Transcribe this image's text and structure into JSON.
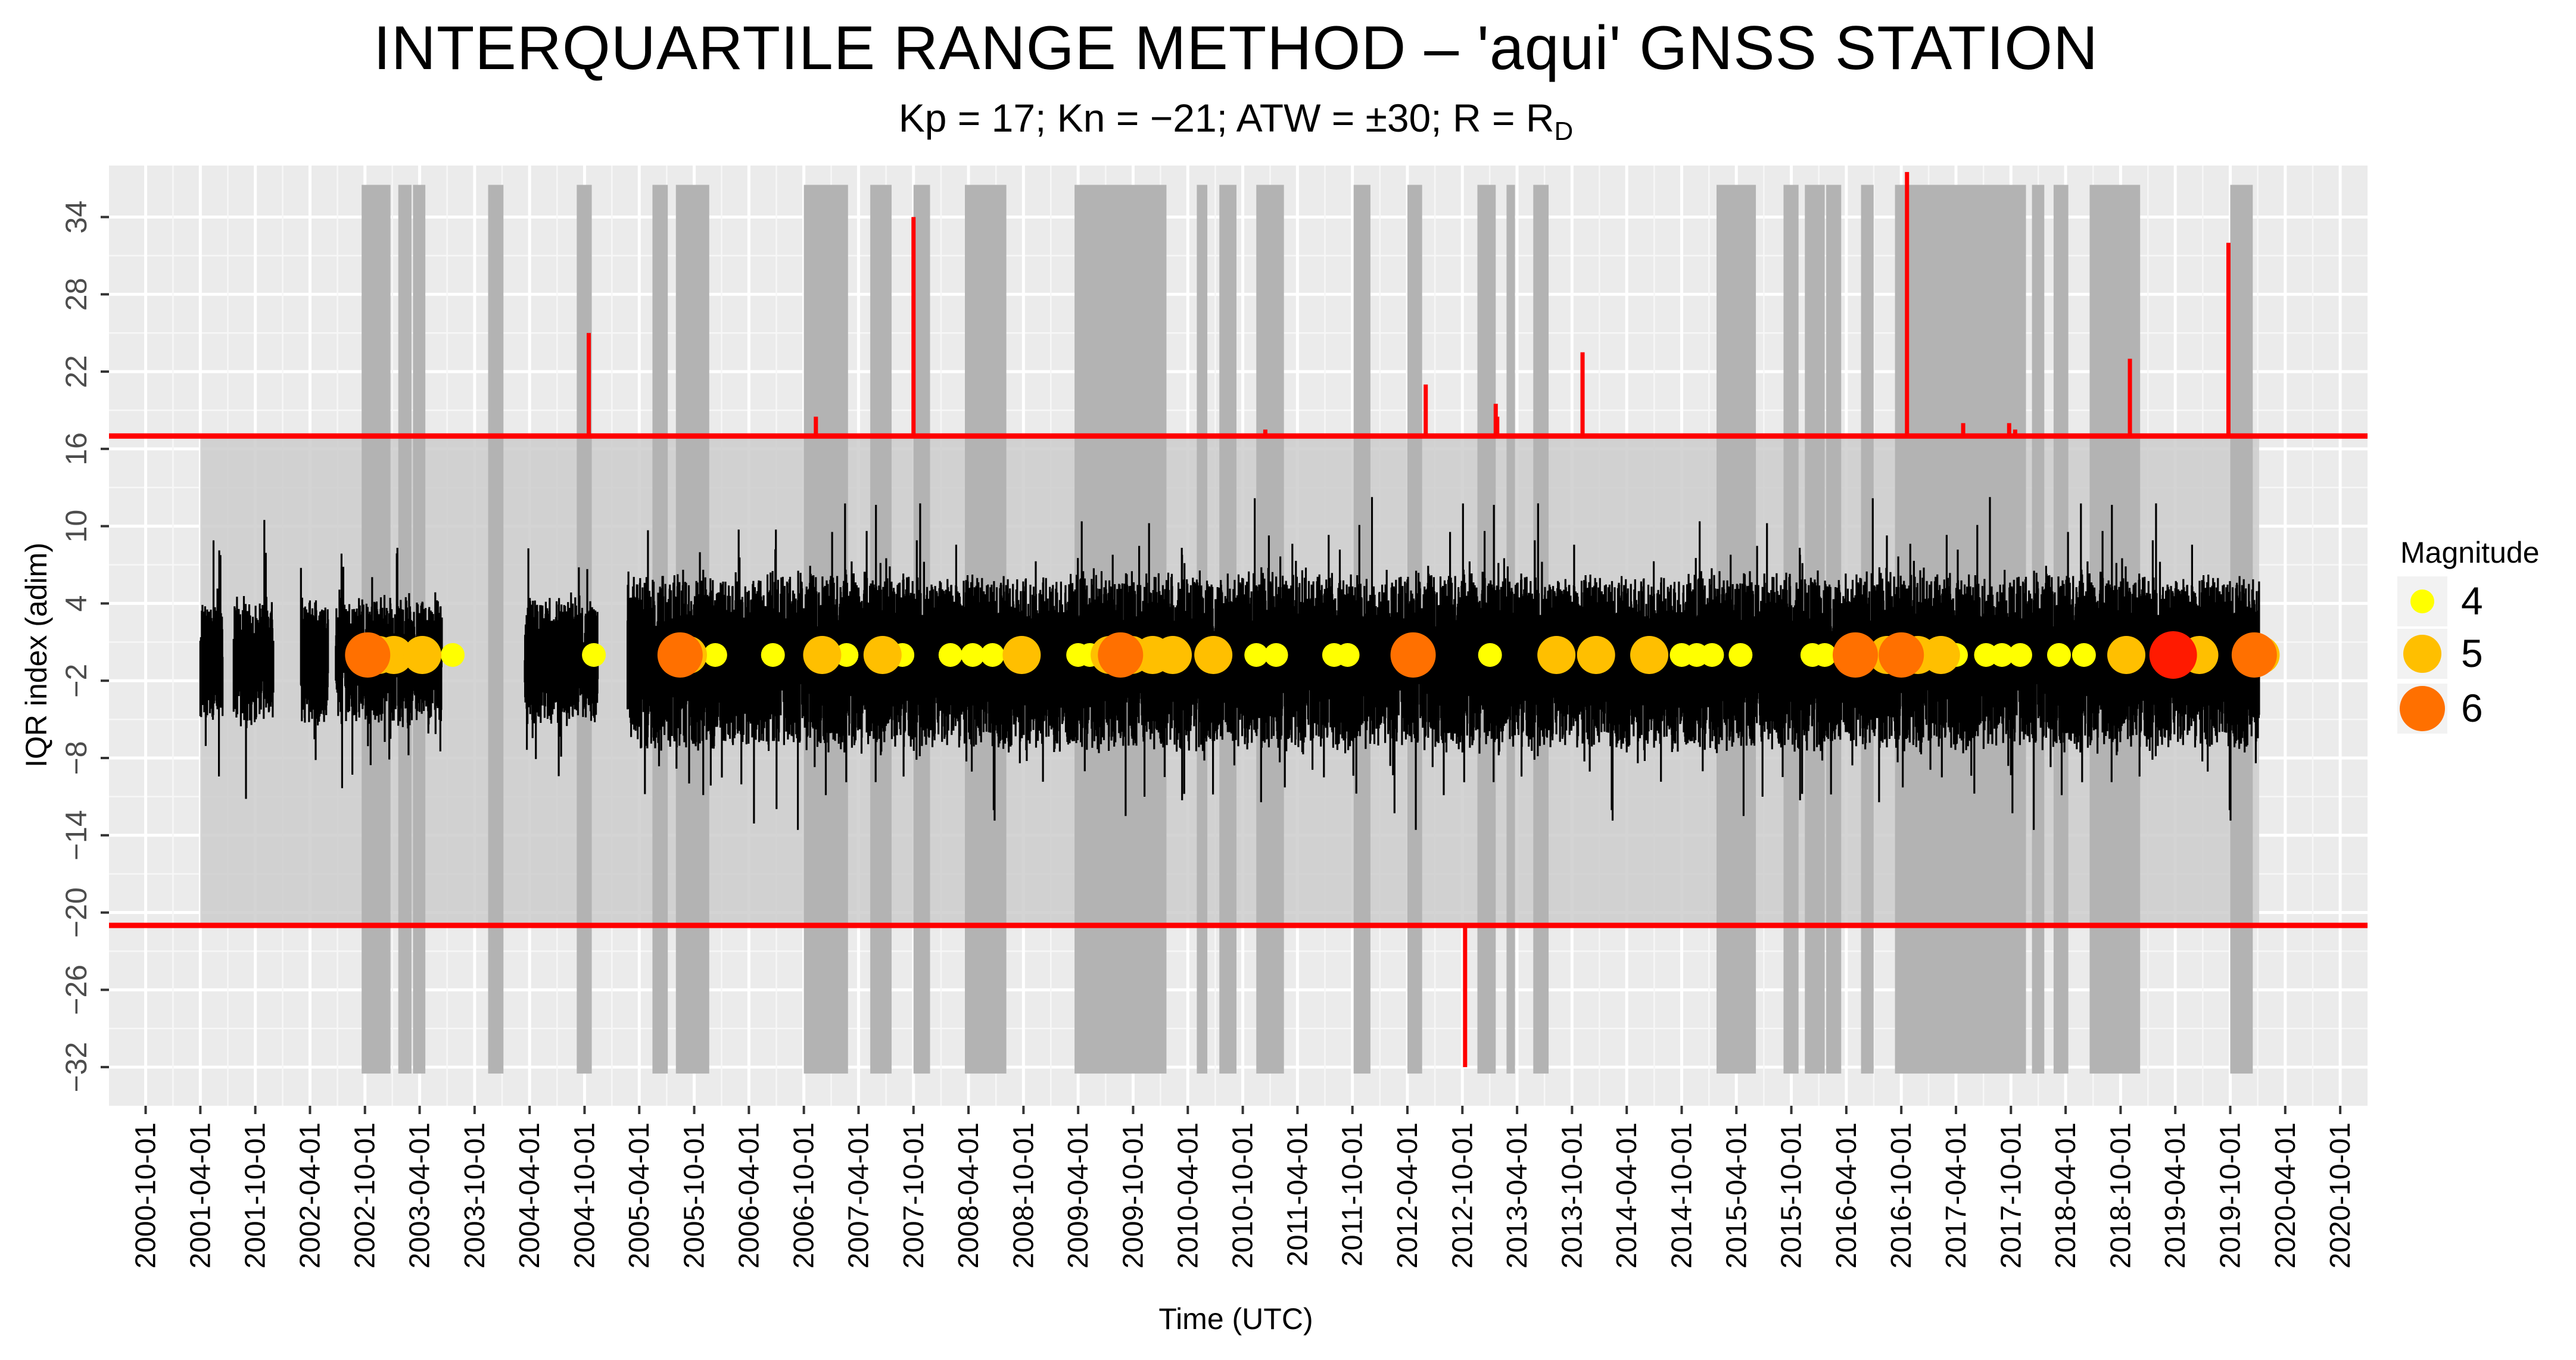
{
  "chart_data": {
    "type": "line",
    "title": "INTERQUARTILE RANGE METHOD – 'aqui' GNSS STATION",
    "subtitle": {
      "prefix": "Kp = 17; Kn = −21; ATW = ±30; R = R",
      "subscript": "D"
    },
    "xlabel": "Time (UTC)",
    "ylabel": "IQR index (adim)",
    "x_tick_labels": [
      "2000-10-01",
      "2001-04-01",
      "2001-10-01",
      "2002-04-01",
      "2002-10-01",
      "2003-04-01",
      "2003-10-01",
      "2004-04-01",
      "2004-10-01",
      "2005-04-01",
      "2005-10-01",
      "2006-04-01",
      "2006-10-01",
      "2007-04-01",
      "2007-10-01",
      "2008-04-01",
      "2008-10-01",
      "2009-04-01",
      "2009-10-01",
      "2010-04-01",
      "2010-10-01",
      "2011-04-01",
      "2011-10-01",
      "2012-04-01",
      "2012-10-01",
      "2013-04-01",
      "2013-10-01",
      "2014-04-01",
      "2014-10-01",
      "2015-04-01",
      "2015-10-01",
      "2016-04-01",
      "2016-10-01",
      "2017-04-01",
      "2017-10-01",
      "2018-04-01",
      "2018-10-01",
      "2019-04-01",
      "2019-10-01",
      "2020-04-01",
      "2020-10-01"
    ],
    "y_ticks": [
      34,
      28,
      22,
      16,
      10,
      4,
      -2,
      -8,
      -14,
      -20,
      -26,
      -32
    ],
    "y_tick_labels": [
      "34",
      "28",
      "22",
      "16",
      "10",
      "4",
      "−2",
      "−8",
      "−14",
      "−20",
      "−26",
      "−32"
    ],
    "xlim": [
      "2000-06-01",
      "2020-12-31"
    ],
    "ylim": [
      -35,
      38
    ],
    "grid": true,
    "thresholds": {
      "upper": 17,
      "lower": -21,
      "color": "#ff0000"
    },
    "shaded_periods": [
      [
        "2002-09-20",
        "2002-12-25"
      ],
      [
        "2003-01-20",
        "2003-03-05"
      ],
      [
        "2003-03-10",
        "2003-04-20"
      ],
      [
        "2003-11-15",
        "2004-01-05"
      ],
      [
        "2004-09-05",
        "2004-10-25"
      ],
      [
        "2005-05-15",
        "2005-07-05"
      ],
      [
        "2005-08-01",
        "2005-11-20"
      ],
      [
        "2006-10-01",
        "2007-02-25"
      ],
      [
        "2007-05-10",
        "2007-07-20"
      ],
      [
        "2007-10-01",
        "2007-11-25"
      ],
      [
        "2008-03-20",
        "2008-08-05"
      ],
      [
        "2009-03-20",
        "2010-01-20"
      ],
      [
        "2010-05-01",
        "2010-06-05"
      ],
      [
        "2010-07-15",
        "2010-09-10"
      ],
      [
        "2010-11-15",
        "2011-02-15"
      ],
      [
        "2011-10-05",
        "2011-11-30"
      ],
      [
        "2012-04-01",
        "2012-05-20"
      ],
      [
        "2012-11-20",
        "2013-01-20"
      ],
      [
        "2013-02-25",
        "2013-03-25"
      ],
      [
        "2013-05-25",
        "2013-07-15"
      ],
      [
        "2015-01-25",
        "2015-06-05"
      ],
      [
        "2015-09-05",
        "2015-10-25"
      ],
      [
        "2015-11-15",
        "2016-01-20"
      ],
      [
        "2016-01-25",
        "2016-03-15"
      ],
      [
        "2016-05-20",
        "2016-07-01"
      ],
      [
        "2016-09-10",
        "2017-11-20"
      ],
      [
        "2017-12-10",
        "2018-01-20"
      ],
      [
        "2018-02-20",
        "2018-04-10"
      ],
      [
        "2018-06-20",
        "2018-12-05"
      ],
      [
        "2019-10-01",
        "2019-12-15"
      ]
    ],
    "shaded_color": "#b3b3b3",
    "background_band": [
      "2001-04-01",
      "2020-01-05"
    ],
    "spikes": [
      {
        "date": "2004-10-15",
        "value": 25
      },
      {
        "date": "2006-11-10",
        "value": 18.5
      },
      {
        "date": "2007-10-01",
        "value": 34
      },
      {
        "date": "2010-12-15",
        "value": 17.5
      },
      {
        "date": "2012-06-01",
        "value": 21
      },
      {
        "date": "2012-10-10",
        "value": -32
      },
      {
        "date": "2013-01-20",
        "value": 19.5
      },
      {
        "date": "2013-01-25",
        "value": 18.5
      },
      {
        "date": "2013-11-05",
        "value": 23.5
      },
      {
        "date": "2016-10-20",
        "value": 37.5
      },
      {
        "date": "2017-04-25",
        "value": 18
      },
      {
        "date": "2017-09-25",
        "value": 18
      },
      {
        "date": "2017-10-15",
        "value": 17.5
      },
      {
        "date": "2018-11-01",
        "value": 23
      },
      {
        "date": "2019-09-25",
        "value": 32
      }
    ],
    "data_gaps": [
      [
        "2001-06-15",
        "2001-07-20"
      ],
      [
        "2001-12-01",
        "2002-03-01"
      ],
      [
        "2002-06-01",
        "2002-06-25"
      ],
      [
        "2003-06-15",
        "2004-03-15"
      ],
      [
        "2004-11-15",
        "2005-02-20"
      ]
    ],
    "events": [
      {
        "date": "2003-01-05",
        "magnitude": 5
      },
      {
        "date": "2003-07-20",
        "magnitude": 4
      },
      {
        "date": "2004-11-01",
        "magnitude": 4
      },
      {
        "date": "2005-12-10",
        "magnitude": 4
      },
      {
        "date": "2006-06-20",
        "magnitude": 4
      },
      {
        "date": "2006-12-10",
        "magnitude": 4
      },
      {
        "date": "2007-02-20",
        "magnitude": 4
      },
      {
        "date": "2007-06-01",
        "magnitude": 4
      },
      {
        "date": "2007-08-25",
        "magnitude": 4
      },
      {
        "date": "2008-02-01",
        "magnitude": 4
      },
      {
        "date": "2008-04-15",
        "magnitude": 4
      },
      {
        "date": "2008-06-20",
        "magnitude": 4
      },
      {
        "date": "2009-04-01",
        "magnitude": 4
      },
      {
        "date": "2009-05-10",
        "magnitude": 4
      },
      {
        "date": "2009-09-01",
        "magnitude": 4
      },
      {
        "date": "2010-03-01",
        "magnitude": 4
      },
      {
        "date": "2010-11-15",
        "magnitude": 4
      },
      {
        "date": "2011-01-20",
        "magnitude": 4
      },
      {
        "date": "2011-08-01",
        "magnitude": 4
      },
      {
        "date": "2011-09-15",
        "magnitude": 4
      },
      {
        "date": "2013-01-01",
        "magnitude": 4
      },
      {
        "date": "2014-10-01",
        "magnitude": 4
      },
      {
        "date": "2014-11-20",
        "magnitude": 4
      },
      {
        "date": "2015-01-10",
        "magnitude": 4
      },
      {
        "date": "2015-04-15",
        "magnitude": 4
      },
      {
        "date": "2015-12-10",
        "magnitude": 4
      },
      {
        "date": "2016-01-20",
        "magnitude": 4
      },
      {
        "date": "2017-01-20",
        "magnitude": 4
      },
      {
        "date": "2017-04-01",
        "magnitude": 4
      },
      {
        "date": "2017-07-10",
        "magnitude": 4
      },
      {
        "date": "2017-09-01",
        "magnitude": 4
      },
      {
        "date": "2017-11-01",
        "magnitude": 4
      },
      {
        "date": "2018-03-10",
        "magnitude": 4
      },
      {
        "date": "2018-06-01",
        "magnitude": 4
      },
      {
        "date": "2019-03-10",
        "magnitude": 4
      },
      {
        "date": "2002-11-15",
        "magnitude": 5
      },
      {
        "date": "2003-04-10",
        "magnitude": 5
      },
      {
        "date": "2005-09-10",
        "magnitude": 5
      },
      {
        "date": "2006-12-01",
        "magnitude": 5
      },
      {
        "date": "2007-06-20",
        "magnitude": 5
      },
      {
        "date": "2008-09-25",
        "magnitude": 5
      },
      {
        "date": "2009-07-15",
        "magnitude": 5
      },
      {
        "date": "2009-09-25",
        "magnitude": 5
      },
      {
        "date": "2009-12-05",
        "magnitude": 5
      },
      {
        "date": "2010-02-10",
        "magnitude": 5
      },
      {
        "date": "2010-06-25",
        "magnitude": 5
      },
      {
        "date": "2013-08-10",
        "magnitude": 5
      },
      {
        "date": "2013-12-20",
        "magnitude": 5
      },
      {
        "date": "2014-06-15",
        "magnitude": 5
      },
      {
        "date": "2016-08-15",
        "magnitude": 5
      },
      {
        "date": "2016-11-25",
        "magnitude": 5
      },
      {
        "date": "2017-02-10",
        "magnitude": 5
      },
      {
        "date": "2018-10-20",
        "magnitude": 5
      },
      {
        "date": "2019-06-20",
        "magnitude": 5
      },
      {
        "date": "2020-01-10",
        "magnitude": 5
      },
      {
        "date": "2002-10-10",
        "magnitude": 6
      },
      {
        "date": "2005-08-15",
        "magnitude": 6
      },
      {
        "date": "2009-08-20",
        "magnitude": 6
      },
      {
        "date": "2012-04-20",
        "magnitude": 6
      },
      {
        "date": "2016-05-01",
        "magnitude": 6
      },
      {
        "date": "2016-10-01",
        "magnitude": 6
      },
      {
        "date": "2019-12-20",
        "magnitude": 6
      },
      {
        "date": "2019-03-25",
        "magnitude": 7
      }
    ],
    "legend": {
      "title": "Magnitude",
      "placement": "right",
      "items": [
        {
          "label": "4",
          "color": "#ffff00",
          "magnitude": 4
        },
        {
          "label": "5",
          "color": "#ffbf00",
          "magnitude": 5
        },
        {
          "label": "6",
          "color": "#ff7000",
          "magnitude": 6
        }
      ]
    },
    "magnitude_colors": {
      "4": "#ffff00",
      "5": "#ffbf00",
      "6": "#ff7000",
      "7": "#ff1a00"
    },
    "series_color": "#000000"
  }
}
